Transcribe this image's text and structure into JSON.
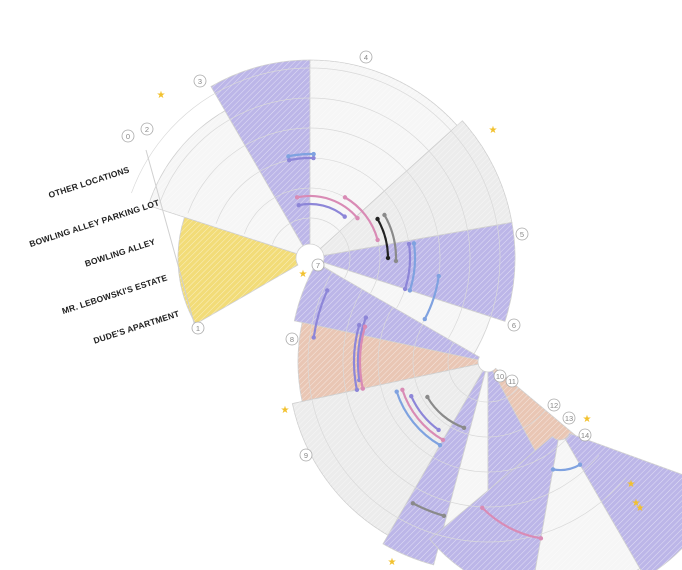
{
  "colors": {
    "purple": "#bcb6e8",
    "yellow": "#f2dc78",
    "peach": "#e9c6b4",
    "grey": "#ececec",
    "light": "#f6f6f6",
    "ring": "#d9d9d9",
    "star": "#f2c12e",
    "track_purple": "#8d86d8",
    "track_pink": "#d98bb5",
    "track_blue": "#7fa2e0",
    "track_grey": "#8a8a8a",
    "track_black": "#222222"
  },
  "location_labels": [
    "OTHER LOCATIONS",
    "BOWLING ALLEY PARKING LOT",
    "BOWLING ALLEY",
    "MR. LEBOWSKI'S ESTATE",
    "DUDE'S APARTMENT"
  ],
  "scene_numbers": [
    "0",
    "1",
    "2",
    "3",
    "4",
    "5",
    "6",
    "7",
    "8",
    "9",
    "10",
    "11",
    "12",
    "13",
    "14"
  ],
  "icons": [
    "star-icon"
  ]
}
